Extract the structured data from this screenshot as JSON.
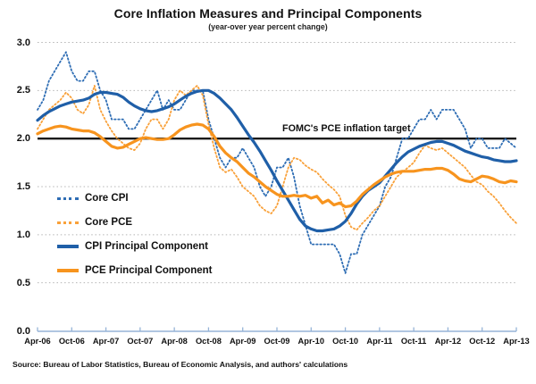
{
  "header": {
    "title": "Core Inflation Measures and Principal Components",
    "subtitle": "(year-over year percent change)"
  },
  "annotation": {
    "target_label": "FOMC's PCE inflation target"
  },
  "source": "Source: Bureau of Labor Statistics, Bureau of Economic Analysis, and authors' calculations",
  "colors": {
    "core_cpi_blue": "#2E6DB4",
    "core_pce_orange": "#F9A13A",
    "cpi_pc_blue": "#1F5FA8",
    "pce_pc_orange": "#F7941E",
    "target_black": "#1A1A1A",
    "grid_gray": "#B5B5B5",
    "axis_blue": "#95B3D7"
  },
  "legend": {
    "items": [
      {
        "label": "Core CPI"
      },
      {
        "label": "Core PCE"
      },
      {
        "label": "CPI Principal Component"
      },
      {
        "label": "PCE Principal Component"
      }
    ]
  },
  "chart_data": {
    "type": "line",
    "title": "Core Inflation Measures and Principal Components",
    "subtitle": "(year-over year percent change)",
    "xlabel": "",
    "ylabel": "",
    "ylim": [
      0.0,
      3.0
    ],
    "y_tick_step": 0.5,
    "y_tick_labels": [
      "3.0",
      "2.5",
      "2.0",
      "1.5",
      "1.0",
      "0.5",
      "0.0"
    ],
    "x_tick_labels": [
      "Apr-06",
      "Oct-06",
      "Apr-07",
      "Oct-07",
      "Apr-08",
      "Oct-08",
      "Apr-09",
      "Oct-09",
      "Apr-10",
      "Oct-10",
      "Apr-11",
      "Oct-11",
      "Apr-12",
      "Oct-12",
      "Apr-13"
    ],
    "x_frequency": "monthly, Apr-2006 through Apr-2013 (85 points per series)",
    "grid": "dotted horizontal gridlines at 0.5 intervals",
    "legend_position": "inside-left",
    "reference_line": {
      "label": "FOMC's PCE inflation target",
      "value": 2.0
    },
    "series": [
      {
        "name": "Core CPI",
        "style": "dotted",
        "color": "#2E6DB4",
        "values": [
          2.3,
          2.4,
          2.6,
          2.7,
          2.8,
          2.9,
          2.7,
          2.6,
          2.6,
          2.7,
          2.7,
          2.5,
          2.4,
          2.2,
          2.2,
          2.2,
          2.1,
          2.1,
          2.2,
          2.3,
          2.4,
          2.5,
          2.3,
          2.4,
          2.3,
          2.3,
          2.4,
          2.5,
          2.5,
          2.5,
          2.2,
          2.0,
          1.8,
          1.7,
          1.8,
          1.8,
          1.9,
          1.8,
          1.7,
          1.5,
          1.4,
          1.5,
          1.7,
          1.7,
          1.8,
          1.6,
          1.3,
          1.1,
          0.9,
          0.9,
          0.9,
          0.9,
          0.9,
          0.8,
          0.6,
          0.8,
          0.8,
          1.0,
          1.1,
          1.2,
          1.3,
          1.5,
          1.6,
          1.8,
          2.0,
          2.0,
          2.1,
          2.2,
          2.2,
          2.3,
          2.2,
          2.3,
          2.3,
          2.3,
          2.2,
          2.1,
          1.9,
          2.0,
          2.0,
          1.9,
          1.9,
          1.9,
          2.0,
          1.95,
          1.9
        ]
      },
      {
        "name": "Core PCE",
        "style": "dotted",
        "color": "#F9A13A",
        "values": [
          2.1,
          2.2,
          2.3,
          2.35,
          2.4,
          2.48,
          2.42,
          2.3,
          2.26,
          2.35,
          2.55,
          2.3,
          2.18,
          2.08,
          2.0,
          1.95,
          1.9,
          1.88,
          1.95,
          2.1,
          2.2,
          2.2,
          2.1,
          2.2,
          2.4,
          2.5,
          2.45,
          2.5,
          2.55,
          2.45,
          2.15,
          1.9,
          1.7,
          1.65,
          1.68,
          1.6,
          1.5,
          1.45,
          1.4,
          1.3,
          1.25,
          1.22,
          1.3,
          1.5,
          1.7,
          1.8,
          1.78,
          1.72,
          1.68,
          1.65,
          1.58,
          1.52,
          1.47,
          1.4,
          1.2,
          1.08,
          1.05,
          1.12,
          1.18,
          1.25,
          1.3,
          1.4,
          1.5,
          1.6,
          1.65,
          1.7,
          1.75,
          1.85,
          1.93,
          1.9,
          1.88,
          1.9,
          1.85,
          1.8,
          1.75,
          1.7,
          1.62,
          1.55,
          1.52,
          1.45,
          1.4,
          1.33,
          1.25,
          1.18,
          1.12
        ]
      },
      {
        "name": "CPI Principal Component",
        "style": "solid",
        "color": "#1F5FA8",
        "values": [
          2.19,
          2.24,
          2.28,
          2.31,
          2.34,
          2.36,
          2.38,
          2.39,
          2.4,
          2.42,
          2.46,
          2.48,
          2.48,
          2.47,
          2.46,
          2.43,
          2.38,
          2.34,
          2.31,
          2.29,
          2.28,
          2.29,
          2.31,
          2.33,
          2.36,
          2.4,
          2.44,
          2.47,
          2.49,
          2.5,
          2.5,
          2.47,
          2.42,
          2.36,
          2.3,
          2.22,
          2.13,
          2.04,
          1.96,
          1.87,
          1.77,
          1.67,
          1.56,
          1.46,
          1.36,
          1.26,
          1.16,
          1.09,
          1.06,
          1.04,
          1.04,
          1.05,
          1.06,
          1.09,
          1.14,
          1.22,
          1.32,
          1.4,
          1.46,
          1.5,
          1.54,
          1.61,
          1.68,
          1.75,
          1.81,
          1.86,
          1.89,
          1.92,
          1.94,
          1.96,
          1.97,
          1.97,
          1.95,
          1.93,
          1.9,
          1.87,
          1.85,
          1.83,
          1.81,
          1.8,
          1.78,
          1.77,
          1.76,
          1.76,
          1.77
        ]
      },
      {
        "name": "PCE Principal Component",
        "style": "solid",
        "color": "#F7941E",
        "values": [
          2.05,
          2.08,
          2.1,
          2.12,
          2.13,
          2.12,
          2.1,
          2.09,
          2.08,
          2.08,
          2.06,
          2.02,
          1.97,
          1.92,
          1.9,
          1.91,
          1.94,
          1.97,
          2.0,
          2.01,
          2.0,
          1.99,
          1.99,
          2.0,
          2.04,
          2.09,
          2.12,
          2.14,
          2.15,
          2.14,
          2.1,
          2.02,
          1.92,
          1.85,
          1.8,
          1.76,
          1.7,
          1.64,
          1.6,
          1.55,
          1.5,
          1.46,
          1.42,
          1.4,
          1.4,
          1.41,
          1.4,
          1.41,
          1.38,
          1.4,
          1.33,
          1.36,
          1.31,
          1.33,
          1.29,
          1.3,
          1.35,
          1.42,
          1.47,
          1.52,
          1.56,
          1.6,
          1.63,
          1.65,
          1.66,
          1.66,
          1.66,
          1.67,
          1.68,
          1.68,
          1.69,
          1.69,
          1.67,
          1.63,
          1.58,
          1.56,
          1.55,
          1.58,
          1.61,
          1.6,
          1.58,
          1.55,
          1.54,
          1.56,
          1.55
        ]
      }
    ]
  }
}
